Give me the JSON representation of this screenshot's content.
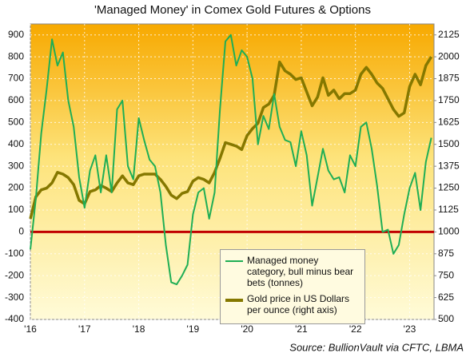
{
  "chart_data": {
    "type": "line",
    "title": "'Managed Money' in Comex Gold Futures & Options",
    "source": "Source: BullionVault via CFTC, LBMA",
    "x": [
      2016.0,
      2016.1,
      2016.2,
      2016.3,
      2016.4,
      2016.5,
      2016.6,
      2016.7,
      2016.8,
      2016.9,
      2017.0,
      2017.1,
      2017.2,
      2017.3,
      2017.4,
      2017.5,
      2017.6,
      2017.7,
      2017.8,
      2017.9,
      2018.0,
      2018.1,
      2018.2,
      2018.3,
      2018.4,
      2018.5,
      2018.6,
      2018.7,
      2018.8,
      2018.9,
      2019.0,
      2019.1,
      2019.2,
      2019.3,
      2019.4,
      2019.5,
      2019.6,
      2019.7,
      2019.8,
      2019.9,
      2020.0,
      2020.1,
      2020.2,
      2020.3,
      2020.4,
      2020.5,
      2020.6,
      2020.7,
      2020.8,
      2020.9,
      2021.0,
      2021.1,
      2021.2,
      2021.3,
      2021.4,
      2021.5,
      2021.6,
      2021.7,
      2021.8,
      2021.9,
      2022.0,
      2022.1,
      2022.2,
      2022.3,
      2022.4,
      2022.5,
      2022.6,
      2022.7,
      2022.8,
      2022.9,
      2023.0,
      2023.1,
      2023.2,
      2023.3,
      2023.4
    ],
    "series": [
      {
        "name": "Managed money category, bull minus bear bets (tonnes)",
        "color": "#1fae55",
        "axis": "y",
        "values": [
          -80,
          150,
          450,
          650,
          880,
          760,
          820,
          600,
          480,
          250,
          110,
          280,
          350,
          180,
          350,
          180,
          560,
          600,
          300,
          240,
          520,
          420,
          330,
          300,
          180,
          -60,
          -230,
          -240,
          -200,
          -150,
          80,
          180,
          200,
          60,
          180,
          560,
          870,
          900,
          760,
          830,
          800,
          700,
          400,
          530,
          470,
          630,
          480,
          420,
          410,
          300,
          460,
          350,
          120,
          250,
          380,
          280,
          240,
          250,
          180,
          350,
          300,
          480,
          500,
          380,
          210,
          0,
          10,
          -100,
          -60,
          80,
          200,
          270,
          100,
          320,
          430
        ]
      },
      {
        "name": "Gold price in US Dollars per ounce (right axis)",
        "color": "#857800",
        "axis": "y2",
        "values": [
          1075,
          1200,
          1240,
          1250,
          1280,
          1340,
          1330,
          1310,
          1270,
          1180,
          1160,
          1230,
          1240,
          1265,
          1250,
          1230,
          1280,
          1320,
          1280,
          1270,
          1320,
          1330,
          1330,
          1330,
          1300,
          1260,
          1210,
          1190,
          1220,
          1230,
          1290,
          1310,
          1300,
          1280,
          1340,
          1420,
          1510,
          1500,
          1490,
          1470,
          1550,
          1590,
          1620,
          1710,
          1730,
          1780,
          1970,
          1920,
          1900,
          1870,
          1880,
          1800,
          1720,
          1770,
          1880,
          1780,
          1810,
          1760,
          1790,
          1790,
          1810,
          1900,
          1940,
          1900,
          1850,
          1820,
          1760,
          1700,
          1660,
          1680,
          1830,
          1900,
          1840,
          1950,
          2000
        ]
      }
    ],
    "xlim": [
      2016,
      2023.45
    ],
    "xticks": [
      {
        "value": 2016,
        "label": "'16"
      },
      {
        "value": 2017,
        "label": "'17"
      },
      {
        "value": 2018,
        "label": "'18"
      },
      {
        "value": 2019,
        "label": "'19"
      },
      {
        "value": 2020,
        "label": "'20"
      },
      {
        "value": 2021,
        "label": "'21"
      },
      {
        "value": 2022,
        "label": "'22"
      },
      {
        "value": 2023,
        "label": "'23"
      }
    ],
    "ylim": [
      -400,
      950
    ],
    "yticks": [
      -400,
      -300,
      -200,
      -100,
      0,
      100,
      200,
      300,
      400,
      500,
      600,
      700,
      800,
      900
    ],
    "y2lim": [
      500,
      2187.5
    ],
    "y2ticks": [
      500,
      625,
      750,
      875,
      1000,
      1125,
      1250,
      1375,
      1500,
      1625,
      1750,
      1875,
      2000,
      2125
    ],
    "hline": {
      "value": 0,
      "color": "#c00000"
    },
    "grid": true,
    "legend": "lower right"
  }
}
